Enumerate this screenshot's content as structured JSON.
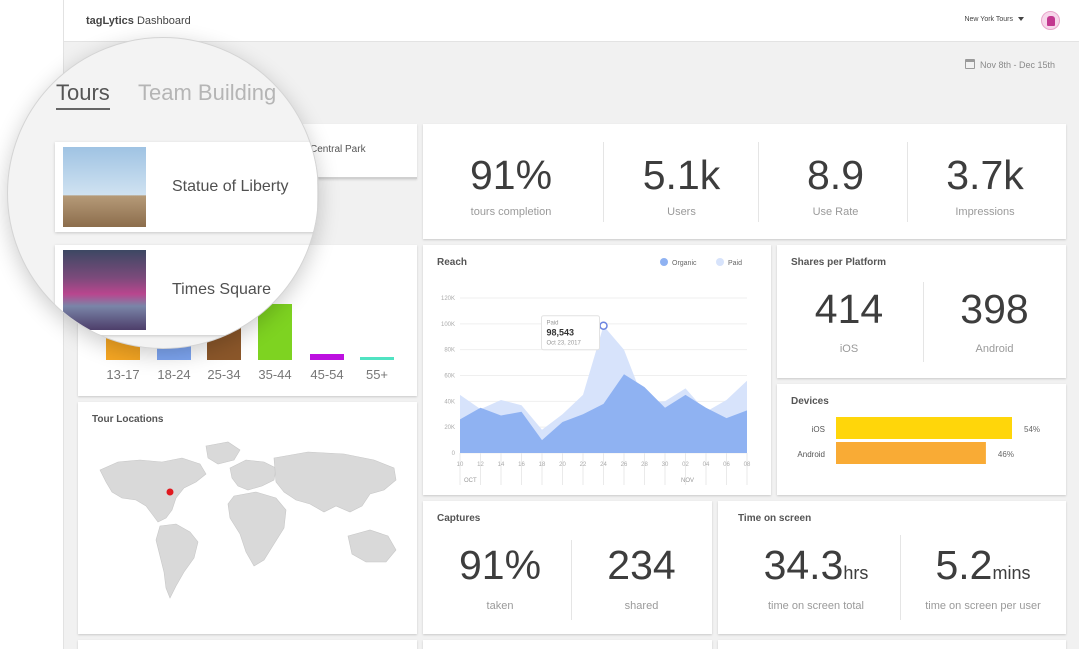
{
  "header": {
    "brand_bold": "tagLytics",
    "brand_rest": " Dashboard",
    "org_selector": "New York Tours"
  },
  "date_range": "Nov 8th - Dec 15th",
  "tabs": [
    {
      "label": "Tours",
      "active": true
    },
    {
      "label": "Team Building",
      "active": false
    }
  ],
  "tours": [
    {
      "name": "Statue of Liberty"
    },
    {
      "name": "Times Square"
    },
    {
      "name": "Central Park"
    }
  ],
  "stats": [
    {
      "value": "91%",
      "label": "tours completion"
    },
    {
      "value": "5.1k",
      "label": "Users"
    },
    {
      "value": "8.9",
      "label": "Use Rate"
    },
    {
      "value": "3.7k",
      "label": "Impressions"
    }
  ],
  "age_chart": {
    "categories": [
      "13-17",
      "18-24",
      "25-34",
      "35-44",
      "45-54",
      "55+"
    ],
    "colors": [
      "#f5a623",
      "#7ea6f2",
      "#8b572a",
      "#7ed321",
      "#bd10e0",
      "#50e3c2"
    ]
  },
  "tour_locations": {
    "title": "Tour Locations"
  },
  "reach": {
    "title": "Reach",
    "legend": [
      "Organic",
      "Paid"
    ],
    "tooltip": {
      "series": "Paid",
      "value": "98,543",
      "date": "Oct 23, 2017"
    },
    "y_ticks": [
      "0",
      "20K",
      "40K",
      "60K",
      "80K",
      "100K",
      "120K"
    ],
    "x_ticks": [
      "10",
      "12",
      "14",
      "16",
      "18",
      "20",
      "22",
      "24",
      "26",
      "28",
      "30",
      "02",
      "04",
      "06",
      "08"
    ],
    "months": [
      "OCT",
      "NOV"
    ],
    "colors": {
      "organic": "#8fb2f2",
      "paid": "#d7e3fb"
    }
  },
  "chart_data": {
    "type": "area",
    "title": "Reach",
    "x": [
      "10",
      "12",
      "14",
      "16",
      "18",
      "20",
      "22",
      "24",
      "26",
      "28",
      "30",
      "02",
      "04",
      "06",
      "08"
    ],
    "series": [
      {
        "name": "Organic",
        "values": [
          26000,
          35000,
          29000,
          32000,
          10000,
          24000,
          30000,
          38000,
          61000,
          51000,
          35000,
          45000,
          35000,
          27000,
          33000
        ]
      },
      {
        "name": "Paid",
        "values": [
          45000,
          34000,
          41000,
          37000,
          18000,
          30000,
          45000,
          98543,
          80000,
          39000,
          40000,
          50000,
          32000,
          41000,
          56000
        ]
      }
    ],
    "ylim": [
      0,
      120000
    ]
  },
  "shares": {
    "title": "Shares per Platform",
    "items": [
      {
        "value": "414",
        "label": "iOS"
      },
      {
        "value": "398",
        "label": "Android"
      }
    ]
  },
  "devices": {
    "title": "Devices",
    "bars": [
      {
        "label": "iOS",
        "percent": 54,
        "text": "54%",
        "color": "#ffd60a"
      },
      {
        "label": "Android",
        "percent": 46,
        "text": "46%",
        "color": "#f9ab35"
      }
    ]
  },
  "captures": {
    "title": "Captures",
    "items": [
      {
        "value": "91%",
        "label": "taken"
      },
      {
        "value": "234",
        "label": "shared"
      }
    ]
  },
  "time_on_screen": {
    "title": "Time on screen",
    "items": [
      {
        "value": "34.3",
        "unit": "hrs",
        "label": "time on screen total"
      },
      {
        "value": "5.2",
        "unit": "mins",
        "label": "time on screen per user"
      }
    ]
  }
}
